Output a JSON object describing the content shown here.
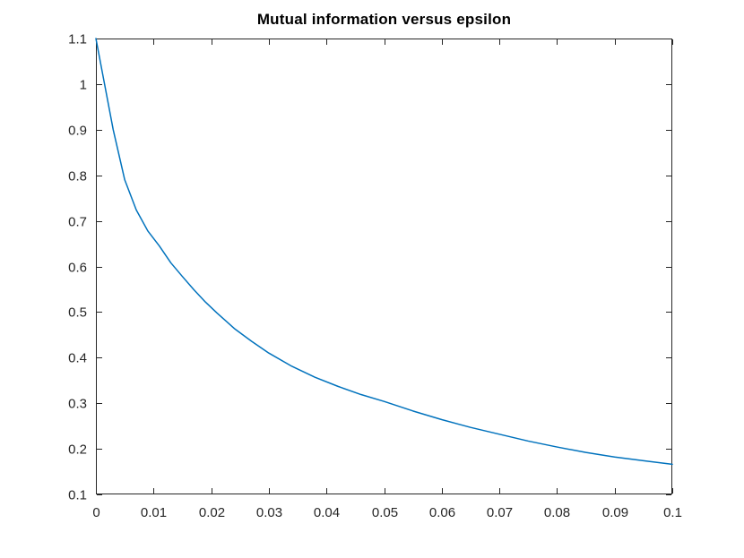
{
  "figure": {
    "title": "Mutual information versus epsilon",
    "background": "#ffffff"
  },
  "colors": {
    "curve": "#0072BD",
    "axis": "#262626",
    "tick_label": "#262626",
    "title": "#000000"
  },
  "chart_data": {
    "type": "line",
    "title": "Mutual information versus epsilon",
    "xlabel": "",
    "ylabel": "",
    "xlim": [
      0,
      0.1
    ],
    "ylim": [
      0.1,
      1.1
    ],
    "grid": false,
    "legend": false,
    "box": true,
    "tick_direction": "in",
    "x_ticks": [
      0,
      0.01,
      0.02,
      0.03,
      0.04,
      0.05,
      0.06,
      0.07,
      0.08,
      0.09,
      0.1
    ],
    "x_tick_labels": [
      "0",
      "0.01",
      "0.02",
      "0.03",
      "0.04",
      "0.05",
      "0.06",
      "0.07",
      "0.08",
      "0.09",
      "0.1"
    ],
    "y_ticks": [
      0.1,
      0.2,
      0.3,
      0.4,
      0.5,
      0.6,
      0.7,
      0.8,
      0.9,
      1,
      1.1
    ],
    "y_tick_labels": [
      "0.1",
      "0.2",
      "0.3",
      "0.4",
      "0.5",
      "0.6",
      "0.7",
      "0.8",
      "0.9",
      "1",
      "1.1"
    ],
    "series": [
      {
        "name": "mutual-information",
        "color": "#0072BD",
        "x": [
          0,
          0.0015,
          0.003,
          0.005,
          0.007,
          0.009,
          0.011,
          0.013,
          0.015,
          0.017,
          0.019,
          0.021,
          0.024,
          0.027,
          0.03,
          0.034,
          0.038,
          0.042,
          0.046,
          0.05,
          0.055,
          0.06,
          0.065,
          0.07,
          0.075,
          0.08,
          0.085,
          0.09,
          0.095,
          0.1
        ],
        "y": [
          1.1,
          1.0,
          0.9,
          0.79,
          0.724,
          0.678,
          0.645,
          0.608,
          0.578,
          0.549,
          0.522,
          0.498,
          0.464,
          0.436,
          0.41,
          0.381,
          0.357,
          0.337,
          0.319,
          0.304,
          0.283,
          0.264,
          0.247,
          0.232,
          0.217,
          0.204,
          0.192,
          0.182,
          0.174,
          0.166
        ]
      }
    ]
  }
}
